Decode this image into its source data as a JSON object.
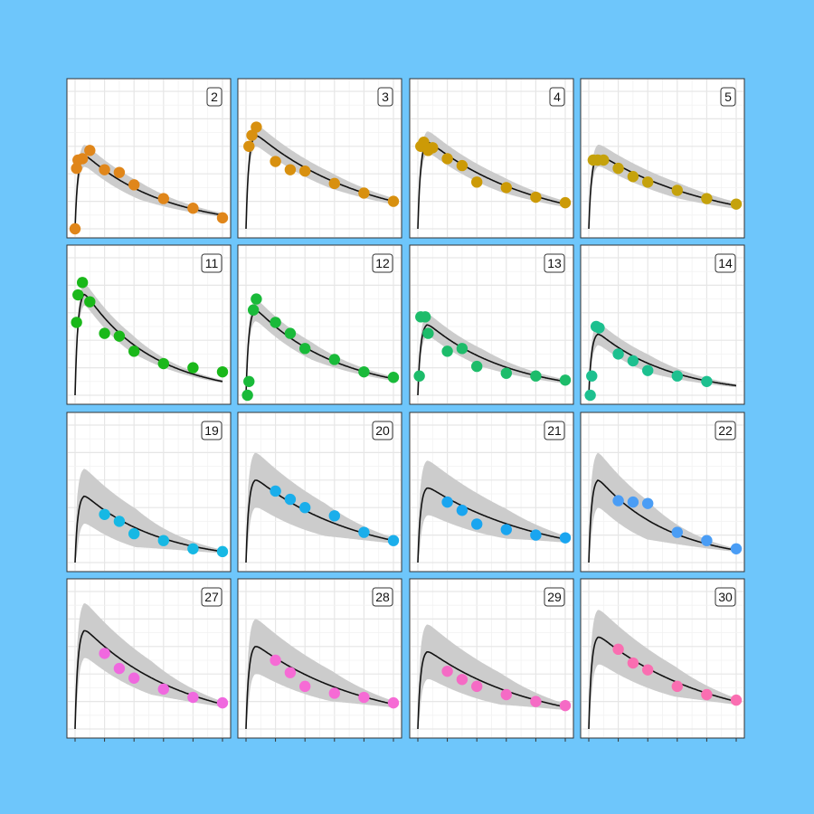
{
  "chart_data": {
    "type": "scatter",
    "title": "",
    "xlabel": "",
    "ylabel": "",
    "grid": true,
    "legend": "none",
    "xlim": [
      0,
      10
    ],
    "ylim": [
      0,
      1
    ],
    "band_color": "#cccccc",
    "fit_color": "#111111",
    "panels": [
      {
        "id": "2",
        "color": "#e0861a",
        "points": [
          [
            0,
            0
          ],
          [
            0.1,
            0.44
          ],
          [
            0.2,
            0.5
          ],
          [
            0.5,
            0.51
          ],
          [
            1,
            0.57
          ],
          [
            2,
            0.43
          ],
          [
            3,
            0.41
          ],
          [
            4,
            0.32
          ],
          [
            6,
            0.22
          ],
          [
            8,
            0.15
          ],
          [
            10,
            0.08
          ]
        ],
        "fit_peak": 0.55,
        "fit_end": 0.1,
        "band_peak": 0.08,
        "band_end": 0.04
      },
      {
        "id": "3",
        "color": "#d8900f",
        "points": [
          [
            0.2,
            0.6
          ],
          [
            0.4,
            0.68
          ],
          [
            0.7,
            0.74
          ],
          [
            2,
            0.49
          ],
          [
            3,
            0.43
          ],
          [
            4,
            0.42
          ],
          [
            6,
            0.33
          ],
          [
            8,
            0.26
          ],
          [
            10,
            0.2
          ]
        ],
        "fit_peak": 0.7,
        "fit_end": 0.2,
        "band_peak": 0.08,
        "band_end": 0.04
      },
      {
        "id": "4",
        "color": "#cc9a06",
        "points": [
          [
            0.2,
            0.6
          ],
          [
            0.4,
            0.63
          ],
          [
            0.7,
            0.57
          ],
          [
            1,
            0.59
          ],
          [
            2,
            0.51
          ],
          [
            3,
            0.46
          ],
          [
            4,
            0.34
          ],
          [
            6,
            0.3
          ],
          [
            8,
            0.23
          ],
          [
            10,
            0.19
          ]
        ],
        "fit_peak": 0.65,
        "fit_end": 0.18,
        "band_peak": 0.08,
        "band_end": 0.04
      },
      {
        "id": "5",
        "color": "#c5a20c",
        "points": [
          [
            0.3,
            0.5
          ],
          [
            0.6,
            0.5
          ],
          [
            1,
            0.5
          ],
          [
            2,
            0.44
          ],
          [
            3,
            0.38
          ],
          [
            4,
            0.34
          ],
          [
            6,
            0.28
          ],
          [
            8,
            0.22
          ],
          [
            10,
            0.18
          ]
        ],
        "fit_peak": 0.55,
        "fit_end": 0.17,
        "band_peak": 0.08,
        "band_end": 0.04
      },
      {
        "id": "11",
        "color": "#1ab81a",
        "points": [
          [
            0.1,
            0.53
          ],
          [
            0.2,
            0.73
          ],
          [
            0.5,
            0.82
          ],
          [
            1,
            0.68
          ],
          [
            2,
            0.45
          ],
          [
            3,
            0.43
          ],
          [
            4,
            0.32
          ],
          [
            6,
            0.23
          ],
          [
            8,
            0.2
          ],
          [
            10,
            0.17
          ]
        ],
        "fit_peak": 0.76,
        "fit_end": 0.1,
        "band_peak": 0.08,
        "band_end": 0.04
      },
      {
        "id": "12",
        "color": "#19ba39",
        "points": [
          [
            0.1,
            0
          ],
          [
            0.2,
            0.1
          ],
          [
            0.5,
            0.62
          ],
          [
            0.7,
            0.7
          ],
          [
            2,
            0.53
          ],
          [
            3,
            0.45
          ],
          [
            4,
            0.34
          ],
          [
            6,
            0.26
          ],
          [
            8,
            0.17
          ],
          [
            10,
            0.13
          ]
        ],
        "fit_peak": 0.64,
        "fit_end": 0.12,
        "band_peak": 0.08,
        "band_end": 0.04
      },
      {
        "id": "13",
        "color": "#1dbc6a",
        "points": [
          [
            0.1,
            0.14
          ],
          [
            0.2,
            0.57
          ],
          [
            0.5,
            0.57
          ],
          [
            0.7,
            0.45
          ],
          [
            2,
            0.32
          ],
          [
            3,
            0.34
          ],
          [
            4,
            0.21
          ],
          [
            6,
            0.16
          ],
          [
            8,
            0.14
          ],
          [
            10,
            0.11
          ]
        ],
        "fit_peak": 0.53,
        "fit_end": 0.1,
        "band_peak": 0.08,
        "band_end": 0.04
      },
      {
        "id": "14",
        "color": "#1dc08f",
        "points": [
          [
            0.1,
            0
          ],
          [
            0.2,
            0.14
          ],
          [
            0.5,
            0.5
          ],
          [
            0.7,
            0.49
          ],
          [
            2,
            0.3
          ],
          [
            3,
            0.25
          ],
          [
            4,
            0.18
          ],
          [
            6,
            0.14
          ],
          [
            8,
            0.1
          ]
        ],
        "fit_peak": 0.46,
        "fit_end": 0.07,
        "band_peak": 0.08,
        "band_end": 0.04
      },
      {
        "id": "19",
        "color": "#16b8e4",
        "points": [
          [
            2,
            0.35
          ],
          [
            3,
            0.3
          ],
          [
            4,
            0.21
          ],
          [
            6,
            0.16
          ],
          [
            8,
            0.1
          ],
          [
            10,
            0.08
          ]
        ],
        "fit_peak": 0.5,
        "fit_end": 0.08,
        "band_peak": 0.2,
        "band_end": 0.04
      },
      {
        "id": "20",
        "color": "#1aaeeb",
        "points": [
          [
            2,
            0.52
          ],
          [
            3,
            0.46
          ],
          [
            4,
            0.4
          ],
          [
            6,
            0.34
          ],
          [
            8,
            0.22
          ],
          [
            10,
            0.16
          ]
        ],
        "fit_peak": 0.62,
        "fit_end": 0.16,
        "band_peak": 0.2,
        "band_end": 0.04
      },
      {
        "id": "21",
        "color": "#19a5f0",
        "points": [
          [
            2,
            0.44
          ],
          [
            3,
            0.38
          ],
          [
            4,
            0.28
          ],
          [
            6,
            0.24
          ],
          [
            8,
            0.2
          ],
          [
            10,
            0.18
          ]
        ],
        "fit_peak": 0.56,
        "fit_end": 0.17,
        "band_peak": 0.2,
        "band_end": 0.04
      },
      {
        "id": "22",
        "color": "#4a9df5",
        "points": [
          [
            2,
            0.45
          ],
          [
            3,
            0.44
          ],
          [
            4,
            0.43
          ],
          [
            6,
            0.22
          ],
          [
            8,
            0.16
          ],
          [
            10,
            0.1
          ]
        ],
        "fit_peak": 0.62,
        "fit_end": 0.09,
        "band_peak": 0.2,
        "band_end": 0.04
      },
      {
        "id": "27",
        "color": "#f068df",
        "points": [
          [
            2,
            0.55
          ],
          [
            3,
            0.44
          ],
          [
            4,
            0.37
          ],
          [
            6,
            0.29
          ],
          [
            8,
            0.23
          ],
          [
            10,
            0.19
          ]
        ],
        "fit_peak": 0.74,
        "fit_end": 0.18,
        "band_peak": 0.2,
        "band_end": 0.04
      },
      {
        "id": "28",
        "color": "#f66bd5",
        "points": [
          [
            2,
            0.5
          ],
          [
            3,
            0.41
          ],
          [
            4,
            0.31
          ],
          [
            6,
            0.26
          ],
          [
            8,
            0.23
          ],
          [
            10,
            0.19
          ]
        ],
        "fit_peak": 0.62,
        "fit_end": 0.18,
        "band_peak": 0.2,
        "band_end": 0.04
      },
      {
        "id": "29",
        "color": "#f56bc5",
        "points": [
          [
            2,
            0.42
          ],
          [
            3,
            0.36
          ],
          [
            4,
            0.31
          ],
          [
            6,
            0.25
          ],
          [
            8,
            0.2
          ],
          [
            10,
            0.17
          ]
        ],
        "fit_peak": 0.58,
        "fit_end": 0.16,
        "band_peak": 0.2,
        "band_end": 0.04
      },
      {
        "id": "30",
        "color": "#fa6eb1",
        "points": [
          [
            2,
            0.58
          ],
          [
            3,
            0.48
          ],
          [
            4,
            0.43
          ],
          [
            6,
            0.31
          ],
          [
            8,
            0.25
          ],
          [
            10,
            0.21
          ]
        ],
        "fit_peak": 0.69,
        "fit_end": 0.2,
        "band_peak": 0.2,
        "band_end": 0.04
      }
    ]
  }
}
